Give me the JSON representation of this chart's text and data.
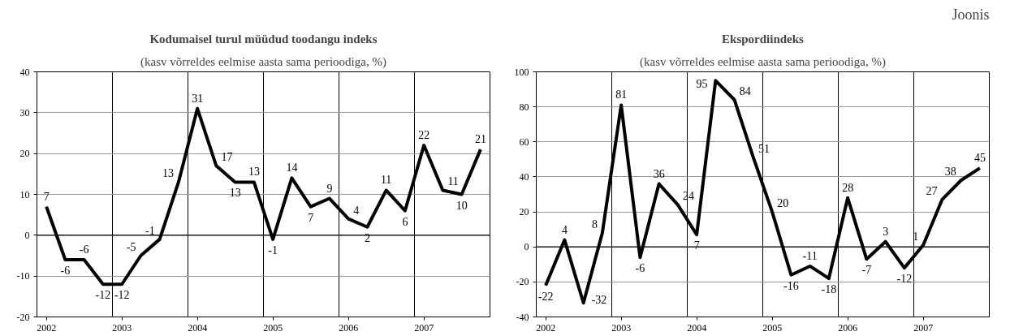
{
  "chart_data": [
    {
      "type": "line",
      "title": "Kodumaisel turul müüdud toodangu indeks",
      "subtitle": "(kasv võrreldes eelmise aasta sama perioodiga, %)",
      "categories": [
        "2002",
        null,
        null,
        null,
        "2003",
        null,
        null,
        null,
        "2004",
        null,
        null,
        null,
        "2005",
        null,
        null,
        null,
        "2006",
        null,
        null,
        null,
        "2007",
        null,
        null,
        null
      ],
      "series": [
        {
          "color": "#000000",
          "values": [
            7,
            -6,
            -6,
            -12,
            -12,
            -5,
            -1,
            13,
            31,
            17,
            13,
            13,
            -1,
            14,
            7,
            9,
            4,
            2,
            11,
            6,
            22,
            11,
            10,
            21
          ]
        }
      ],
      "ylim": [
        -20,
        40
      ],
      "yticks": [
        -20,
        -10,
        0,
        10,
        20,
        30,
        40
      ],
      "grid": true,
      "data_labels": true
    },
    {
      "type": "line",
      "title": "Ekspordiindeks",
      "subtitle": "(kasv võrreldes eelmise aasta sama perioodiga, %)",
      "annotations": [
        "Joonis"
      ],
      "categories": [
        "2002",
        null,
        null,
        null,
        "2003",
        null,
        null,
        null,
        "2004",
        null,
        null,
        null,
        "2005",
        null,
        null,
        null,
        "2006",
        null,
        null,
        null,
        "2007",
        null,
        null,
        null
      ],
      "series": [
        {
          "color": "#000000",
          "values": [
            -22,
            4,
            -32,
            8,
            81,
            -6,
            36,
            24,
            7,
            95,
            84,
            51,
            20,
            -16,
            -11,
            -18,
            28,
            -7,
            3,
            -12,
            1,
            27,
            38,
            45
          ]
        }
      ],
      "ylim": [
        -40,
        100
      ],
      "yticks": [
        -40,
        -20,
        0,
        20,
        40,
        60,
        80,
        100
      ],
      "grid": true,
      "data_labels": true
    }
  ]
}
